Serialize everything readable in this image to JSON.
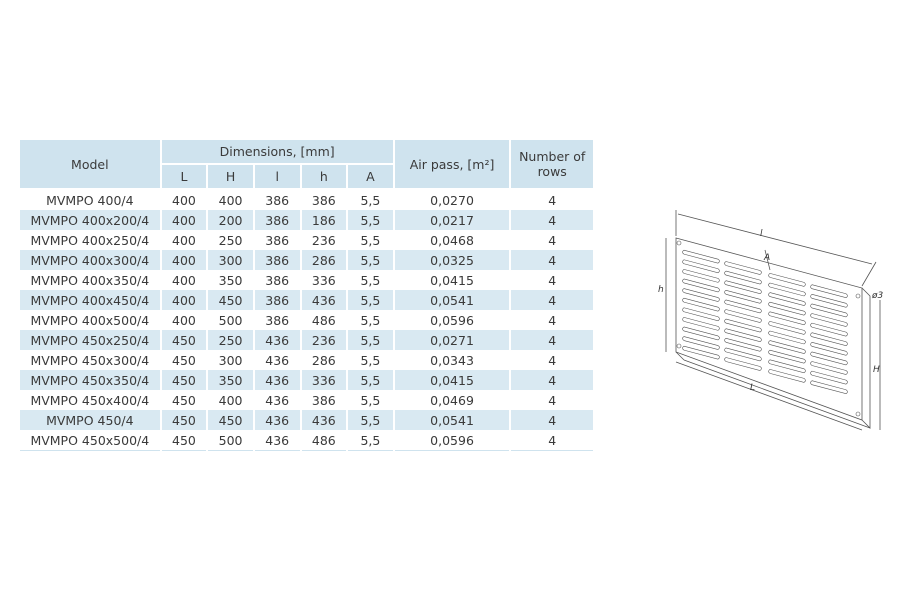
{
  "table": {
    "headers": {
      "model": "Model",
      "dimensions": "Dimensions, [mm]",
      "sub": [
        "L",
        "H",
        "l",
        "h",
        "A"
      ],
      "air_pass": "Air pass, [m²]",
      "rows_count": "Number of rows"
    },
    "rows": [
      [
        "MVMPO 400/4",
        "400",
        "400",
        "386",
        "386",
        "5,5",
        "0,0270",
        "4"
      ],
      [
        "MVMPO 400x200/4",
        "400",
        "200",
        "386",
        "186",
        "5,5",
        "0,0217",
        "4"
      ],
      [
        "MVMPO 400x250/4",
        "400",
        "250",
        "386",
        "236",
        "5,5",
        "0,0468",
        "4"
      ],
      [
        "MVMPO 400x300/4",
        "400",
        "300",
        "386",
        "286",
        "5,5",
        "0,0325",
        "4"
      ],
      [
        "MVMPO 400x350/4",
        "400",
        "350",
        "386",
        "336",
        "5,5",
        "0,0415",
        "4"
      ],
      [
        "MVMPO 400x450/4",
        "400",
        "450",
        "386",
        "436",
        "5,5",
        "0,0541",
        "4"
      ],
      [
        "MVMPO 400x500/4",
        "400",
        "500",
        "386",
        "486",
        "5,5",
        "0,0596",
        "4"
      ],
      [
        "MVMPO 450x250/4",
        "450",
        "250",
        "436",
        "236",
        "5,5",
        "0,0271",
        "4"
      ],
      [
        "MVMPO 450x300/4",
        "450",
        "300",
        "436",
        "286",
        "5,5",
        "0,0343",
        "4"
      ],
      [
        "MVMPO 450x350/4",
        "450",
        "350",
        "436",
        "336",
        "5,5",
        "0,0415",
        "4"
      ],
      [
        "MVMPO 450x400/4",
        "450",
        "400",
        "436",
        "386",
        "5,5",
        "0,0469",
        "4"
      ],
      [
        "MVMPO 450/4",
        "450",
        "450",
        "436",
        "436",
        "5,5",
        "0,0541",
        "4"
      ],
      [
        "MVMPO 450x500/4",
        "450",
        "500",
        "436",
        "486",
        "5,5",
        "0,0596",
        "4"
      ]
    ]
  },
  "drawing": {
    "labels": {
      "top_l": "l",
      "left_h": "h",
      "right_H": "H",
      "bottom_L": "L",
      "A": "A",
      "hole": "ø3"
    }
  }
}
